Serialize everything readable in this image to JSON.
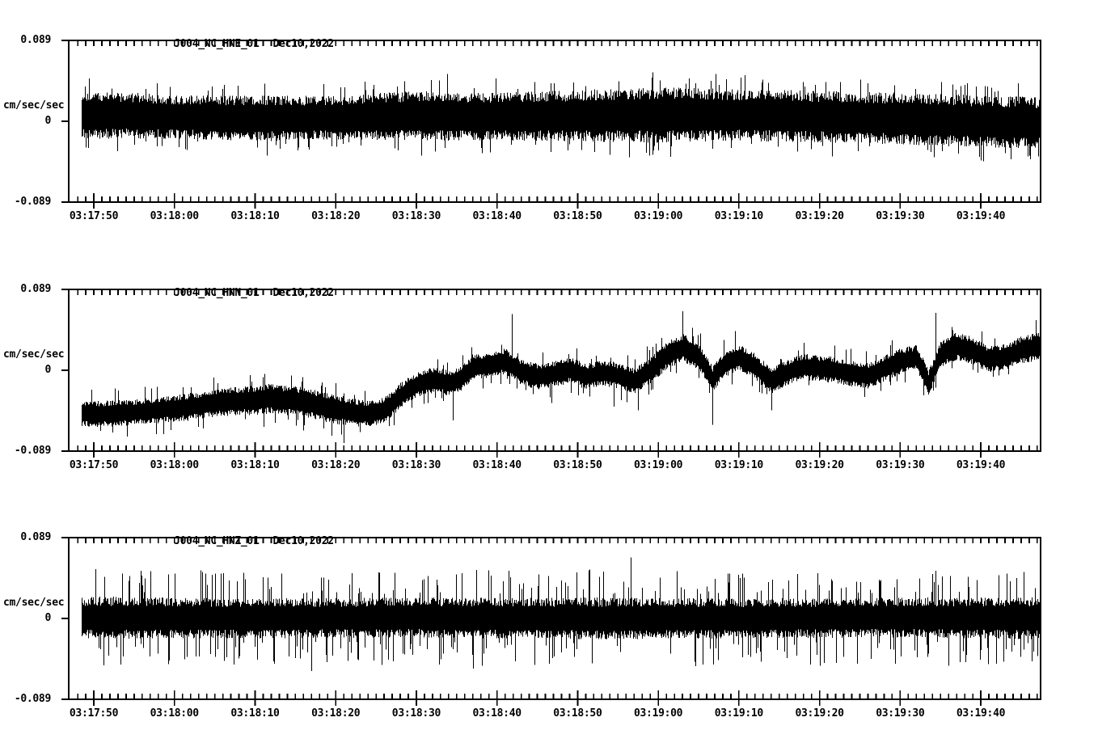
{
  "page": {
    "background": "#ffffff",
    "trace_color": "#000000",
    "axis_color": "#000000"
  },
  "chart_data": [
    {
      "type": "line",
      "kind": "seismogram-trace",
      "station_channel": "J004_NC_HNE_01",
      "date_label": "Dec10,2022",
      "ylabel": "cm/sec/sec",
      "ylim": [
        -0.089,
        0.089
      ],
      "ytick_labels": {
        "top": "0.089",
        "zero": "0",
        "bottom": "-0.089"
      },
      "x_tick_labels": [
        "03:17:50",
        "03:18:00",
        "03:18:10",
        "03:18:20",
        "03:18:30",
        "03:18:40",
        "03:18:50",
        "03:19:00",
        "03:19:10",
        "03:19:20",
        "03:19:30",
        "03:19:40"
      ],
      "x_major_interval_sec": 10,
      "x_minor_interval_sec": 1,
      "x_axis_range_sec": [
        -3.1,
        117.4
      ],
      "data_start_sec": -1.5,
      "envelope": {
        "t": [
          -2,
          0,
          10,
          20,
          30,
          40,
          50,
          60,
          70,
          80,
          90,
          100,
          110,
          118
        ],
        "center": [
          0.007,
          0.007,
          0.005,
          0.003,
          0.004,
          0.006,
          0.005,
          0.006,
          0.007,
          0.007,
          0.005,
          0.003,
          0.0,
          -0.002
        ],
        "half_amp": [
          0.024,
          0.024,
          0.022,
          0.023,
          0.022,
          0.025,
          0.024,
          0.026,
          0.028,
          0.026,
          0.026,
          0.026,
          0.026,
          0.026
        ]
      },
      "spikes": [
        {
          "t": 21.5,
          "v": -0.038
        },
        {
          "t": 38.5,
          "v": 0.044
        },
        {
          "t": 40.6,
          "v": -0.038
        },
        {
          "t": 43.8,
          "v": 0.052
        },
        {
          "t": 49.8,
          "v": 0.047
        },
        {
          "t": 54.6,
          "v": 0.043
        },
        {
          "t": 74.6,
          "v": 0.042
        },
        {
          "t": 96,
          "v": 0.042
        },
        {
          "t": 108,
          "v": 0.04
        },
        {
          "t": 113.7,
          "v": -0.042
        },
        {
          "t": 116,
          "v": -0.038
        }
      ],
      "noise": {
        "seed": 101,
        "spike_prob": 0.06,
        "spike_base": 1.2,
        "spike_var": 0.5
      }
    },
    {
      "type": "line",
      "kind": "seismogram-trace",
      "station_channel": "J004_NC_HNN_01",
      "date_label": "Dec10,2022",
      "ylabel": "cm/sec/sec",
      "ylim": [
        -0.089,
        0.089
      ],
      "ytick_labels": {
        "top": "0.089",
        "zero": "0",
        "bottom": "-0.089"
      },
      "x_tick_labels": [
        "03:17:50",
        "03:18:00",
        "03:18:10",
        "03:18:20",
        "03:18:30",
        "03:18:40",
        "03:18:50",
        "03:19:00",
        "03:19:10",
        "03:19:20",
        "03:19:30",
        "03:19:40"
      ],
      "x_major_interval_sec": 10,
      "x_minor_interval_sec": 1,
      "x_axis_range_sec": [
        -3.1,
        117.4
      ],
      "data_start_sec": -1.5,
      "envelope": {
        "t": [
          -2,
          0,
          4,
          8,
          12,
          16,
          20,
          22,
          24,
          26,
          28,
          30,
          32,
          34,
          36,
          38,
          40,
          42,
          44,
          45.5,
          47,
          49,
          51,
          53,
          55,
          57,
          59,
          61,
          63,
          65,
          67,
          69,
          71,
          73,
          75,
          76.7,
          78,
          80,
          82,
          84,
          86,
          88,
          90,
          92,
          94,
          96,
          98,
          100,
          102,
          103.5,
          105,
          107,
          109,
          111,
          113,
          115,
          118
        ],
        "center": [
          -0.047,
          -0.048,
          -0.047,
          -0.044,
          -0.04,
          -0.035,
          -0.033,
          -0.031,
          -0.033,
          -0.035,
          -0.039,
          -0.043,
          -0.046,
          -0.048,
          -0.044,
          -0.028,
          -0.016,
          -0.011,
          -0.014,
          -0.01,
          0.004,
          0.005,
          0.01,
          -0.002,
          -0.007,
          -0.004,
          0.0,
          -0.007,
          -0.003,
          -0.006,
          -0.012,
          0.0,
          0.016,
          0.025,
          0.015,
          -0.01,
          0.006,
          0.014,
          0.004,
          -0.012,
          -0.002,
          0.004,
          0.002,
          0.0,
          -0.004,
          -0.006,
          0.002,
          0.01,
          0.014,
          -0.014,
          0.018,
          0.027,
          0.021,
          0.012,
          0.015,
          0.022,
          0.028
        ],
        "half_amp": [
          0.013,
          0.013,
          0.013,
          0.013,
          0.014,
          0.014,
          0.015,
          0.015,
          0.015,
          0.015,
          0.015,
          0.015,
          0.014,
          0.013,
          0.013,
          0.013,
          0.013,
          0.013,
          0.013,
          0.013,
          0.013,
          0.013,
          0.013,
          0.013,
          0.013,
          0.013,
          0.013,
          0.013,
          0.013,
          0.013,
          0.013,
          0.014,
          0.014,
          0.014,
          0.014,
          0.013,
          0.013,
          0.013,
          0.013,
          0.013,
          0.013,
          0.013,
          0.013,
          0.013,
          0.013,
          0.013,
          0.013,
          0.013,
          0.013,
          0.013,
          0.014,
          0.014,
          0.014,
          0.013,
          0.013,
          0.014,
          0.014
        ]
      },
      "spikes": [
        {
          "t": 29.5,
          "v": -0.072
        },
        {
          "t": 31,
          "v": -0.08
        },
        {
          "t": 33,
          "v": -0.068
        },
        {
          "t": 44.5,
          "v": -0.055
        },
        {
          "t": 51.8,
          "v": 0.062
        },
        {
          "t": 56.8,
          "v": -0.036
        },
        {
          "t": 64.5,
          "v": -0.04
        },
        {
          "t": 67.5,
          "v": -0.044
        },
        {
          "t": 73,
          "v": 0.065
        },
        {
          "t": 76.7,
          "v": -0.06
        },
        {
          "t": 79.5,
          "v": 0.043
        },
        {
          "t": 84,
          "v": -0.044
        },
        {
          "t": 104.4,
          "v": 0.063
        },
        {
          "t": 116.8,
          "v": 0.055
        }
      ],
      "noise": {
        "seed": 202,
        "spike_prob": 0.06,
        "spike_base": 1.3,
        "spike_var": 0.8
      }
    },
    {
      "type": "line",
      "kind": "seismogram-trace",
      "station_channel": "J004_NC_HNZ_01",
      "date_label": "Dec10,2022",
      "ylabel": "cm/sec/sec",
      "ylim": [
        -0.089,
        0.089
      ],
      "ytick_labels": {
        "top": "0.089",
        "zero": "0",
        "bottom": "-0.089"
      },
      "x_tick_labels": [
        "03:17:50",
        "03:18:00",
        "03:18:10",
        "03:18:20",
        "03:18:30",
        "03:18:40",
        "03:18:50",
        "03:19:00",
        "03:19:10",
        "03:19:20",
        "03:19:30",
        "03:19:40"
      ],
      "x_major_interval_sec": 10,
      "x_minor_interval_sec": 1,
      "x_axis_range_sec": [
        -3.1,
        117.4
      ],
      "data_start_sec": -1.5,
      "envelope": {
        "t": [
          -2,
          0,
          20,
          40,
          60,
          80,
          100,
          118
        ],
        "center": [
          0.001,
          0.001,
          0.0,
          0.001,
          0.0,
          0.0,
          0.001,
          0.0
        ],
        "half_amp": [
          0.02,
          0.021,
          0.02,
          0.02,
          0.021,
          0.02,
          0.02,
          0.021
        ]
      },
      "spikes": [
        {
          "t": 7,
          "v": 0.052
        },
        {
          "t": 16,
          "v": 0.05
        },
        {
          "t": 27,
          "v": -0.058
        },
        {
          "t": 47,
          "v": -0.055
        },
        {
          "t": 66.6,
          "v": 0.067
        },
        {
          "t": 90,
          "v": -0.052
        },
        {
          "t": 104,
          "v": 0.049
        }
      ],
      "noise": {
        "seed": 303,
        "spike_prob": 0.14,
        "spike_base": 1.3,
        "spike_var": 1.3
      }
    }
  ]
}
